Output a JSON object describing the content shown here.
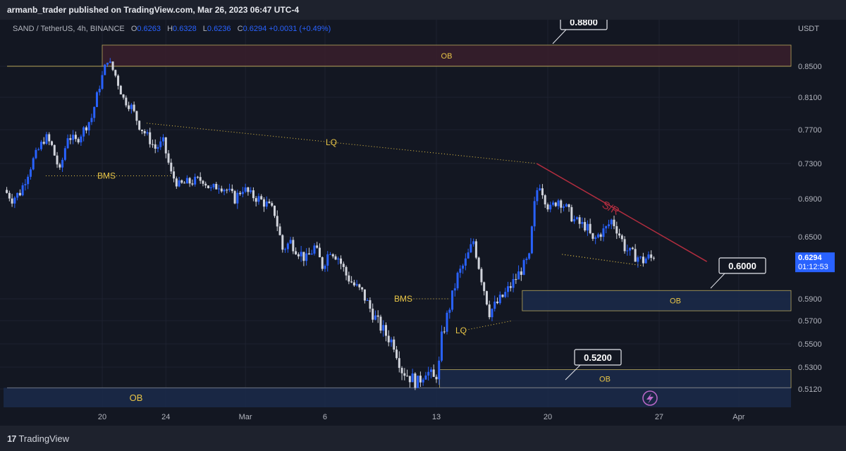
{
  "header": {
    "publisher": "armanb_trader published on TradingView.com, Mar 26, 2023 06:47 UTC-4"
  },
  "legend": {
    "symbol": "SAND / TetherUS, 4h, BINANCE",
    "o_label": "O",
    "o": "0.6263",
    "h_label": "H",
    "h": "0.6328",
    "l_label": "L",
    "l": "0.6236",
    "c_label": "C",
    "c": "0.6294",
    "change": "+0.0031 (+0.49%)"
  },
  "footer": {
    "brand": "TradingView",
    "brand_icon": "tradingview-logo-icon"
  },
  "colors": {
    "bg": "#131722",
    "grid": "#1e2230",
    "up": "#2962ff",
    "down": "#d1d4dc",
    "ob_red": "#3a1f2b",
    "ob_blue": "#1b2a4a",
    "gold": "#e8c547",
    "sr": "#b22d3f"
  },
  "chart_data": {
    "type": "candlestick",
    "currency": "USDT",
    "y_ticks": [
      "0.8500",
      "0.8100",
      "0.7700",
      "0.7300",
      "0.6900",
      "0.6500",
      "0.5900",
      "0.5700",
      "0.5500",
      "0.5300",
      "0.5120"
    ],
    "x_ticks": [
      {
        "label": "20",
        "day": 20
      },
      {
        "label": "24",
        "day": 24
      },
      {
        "label": "Mar",
        "day": 29
      },
      {
        "label": "6",
        "day": 34
      },
      {
        "label": "13",
        "day": 41
      },
      {
        "label": "20",
        "day": 48
      },
      {
        "label": "27",
        "day": 55
      },
      {
        "label": "Apr",
        "day": 60
      }
    ],
    "current_price": "0.6294",
    "countdown": "01:12:53",
    "price_path": [
      [
        14.0,
        0.7
      ],
      [
        14.5,
        0.69
      ],
      [
        15.0,
        0.697
      ],
      [
        15.8,
        0.733
      ],
      [
        16.6,
        0.762
      ],
      [
        17.0,
        0.75
      ],
      [
        17.5,
        0.72
      ],
      [
        18.0,
        0.763
      ],
      [
        18.5,
        0.756
      ],
      [
        19.0,
        0.77
      ],
      [
        19.5,
        0.785
      ],
      [
        20.0,
        0.825
      ],
      [
        20.5,
        0.86
      ],
      [
        21.0,
        0.838
      ],
      [
        21.5,
        0.808
      ],
      [
        22.0,
        0.798
      ],
      [
        22.5,
        0.775
      ],
      [
        23.0,
        0.762
      ],
      [
        23.5,
        0.748
      ],
      [
        24.0,
        0.755
      ],
      [
        24.5,
        0.718
      ],
      [
        25.0,
        0.705
      ],
      [
        25.5,
        0.708
      ],
      [
        26.0,
        0.71
      ],
      [
        26.5,
        0.712
      ],
      [
        27.0,
        0.7
      ],
      [
        27.5,
        0.706
      ],
      [
        28.0,
        0.7
      ],
      [
        28.5,
        0.69
      ],
      [
        29.0,
        0.702
      ],
      [
        29.5,
        0.694
      ],
      [
        30.0,
        0.69
      ],
      [
        30.5,
        0.684
      ],
      [
        31.0,
        0.675
      ],
      [
        31.5,
        0.638
      ],
      [
        32.0,
        0.645
      ],
      [
        32.5,
        0.636
      ],
      [
        33.0,
        0.628
      ],
      [
        33.5,
        0.64
      ],
      [
        34.0,
        0.622
      ],
      [
        34.5,
        0.638
      ],
      [
        35.0,
        0.63
      ],
      [
        35.5,
        0.613
      ],
      [
        36.0,
        0.603
      ],
      [
        36.5,
        0.596
      ],
      [
        37.0,
        0.581
      ],
      [
        37.5,
        0.568
      ],
      [
        38.0,
        0.558
      ],
      [
        38.5,
        0.55
      ],
      [
        39.0,
        0.528
      ],
      [
        39.5,
        0.522
      ],
      [
        40.0,
        0.517
      ],
      [
        40.5,
        0.528
      ],
      [
        41.0,
        0.52
      ],
      [
        41.3,
        0.528
      ],
      [
        41.5,
        0.555
      ],
      [
        42.0,
        0.583
      ],
      [
        42.5,
        0.612
      ],
      [
        43.0,
        0.626
      ],
      [
        43.5,
        0.646
      ],
      [
        44.0,
        0.61
      ],
      [
        44.5,
        0.578
      ],
      [
        45.0,
        0.586
      ],
      [
        45.5,
        0.595
      ],
      [
        46.0,
        0.606
      ],
      [
        46.5,
        0.618
      ],
      [
        47.0,
        0.629
      ],
      [
        47.3,
        0.68
      ],
      [
        47.6,
        0.71
      ],
      [
        48.0,
        0.69
      ],
      [
        48.3,
        0.678
      ],
      [
        48.8,
        0.69
      ],
      [
        49.2,
        0.683
      ],
      [
        49.8,
        0.668
      ],
      [
        50.2,
        0.663
      ],
      [
        50.6,
        0.661
      ],
      [
        51.0,
        0.645
      ],
      [
        51.4,
        0.653
      ],
      [
        51.8,
        0.658
      ],
      [
        52.2,
        0.668
      ],
      [
        52.6,
        0.655
      ],
      [
        53.0,
        0.64
      ],
      [
        53.4,
        0.633
      ],
      [
        53.8,
        0.631
      ],
      [
        54.1,
        0.626
      ],
      [
        54.4,
        0.63
      ],
      [
        54.7,
        0.629
      ]
    ],
    "zones": [
      {
        "label": "OB",
        "top": 0.88,
        "bottom": 0.85,
        "start": 20,
        "color": "red"
      },
      {
        "label": "OB",
        "top": 0.598,
        "bottom": 0.579,
        "start": 46.4,
        "color": "blue"
      },
      {
        "label": "OB",
        "top": 0.528,
        "bottom": 0.513,
        "start": 41.2,
        "color": "blue"
      },
      {
        "label": "OB",
        "top": 0.513,
        "bottom": 0.496,
        "start": 13.8,
        "color": "blue"
      }
    ],
    "annotations": {
      "lq_top": "LQ",
      "bms_left": "BMS",
      "bms_mid": "BMS",
      "lq_mid": "LQ",
      "sr": "S/R",
      "callout_top": "0.8800",
      "callout_mid": "0.6000",
      "callout_low": "0.5200"
    }
  }
}
